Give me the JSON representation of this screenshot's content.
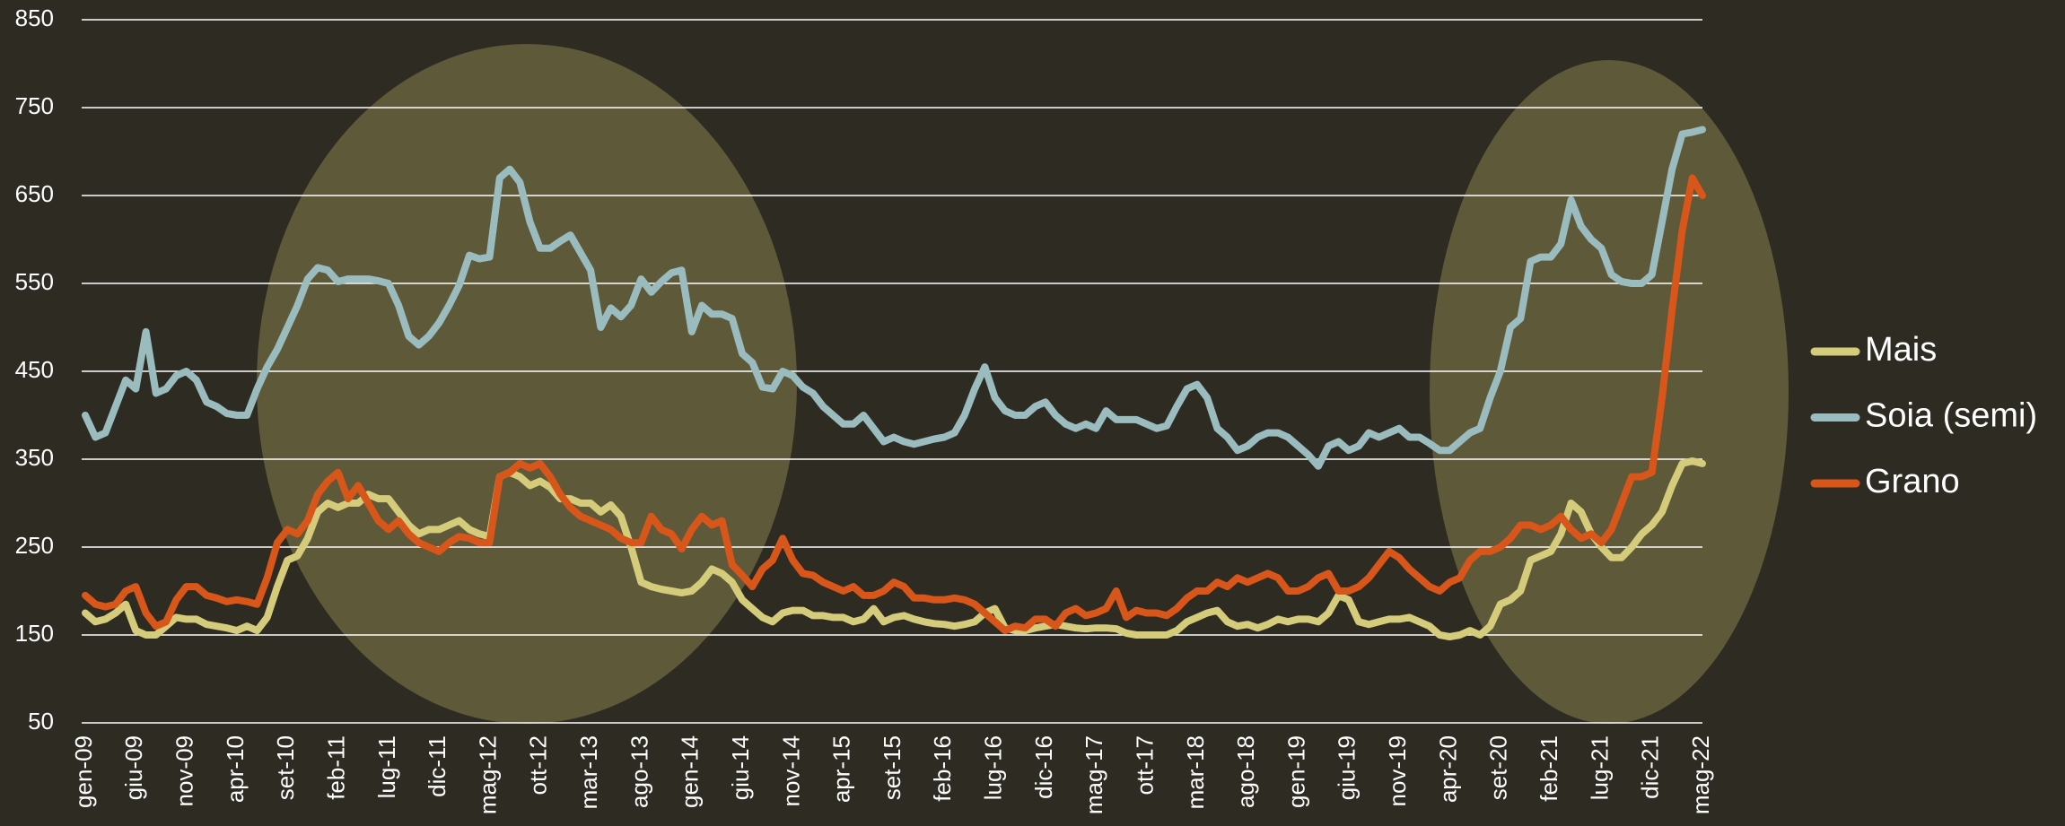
{
  "chart_data": {
    "type": "line",
    "categories": [
      "gen-09",
      null,
      null,
      null,
      null,
      "giu-09",
      null,
      null,
      null,
      null,
      "nov-09",
      null,
      null,
      null,
      null,
      "apr-10",
      null,
      null,
      null,
      null,
      "set-10",
      null,
      null,
      null,
      null,
      "feb-11",
      null,
      null,
      null,
      null,
      "lug-11",
      null,
      null,
      null,
      null,
      "dic-11",
      null,
      null,
      null,
      null,
      "mag-12",
      null,
      null,
      null,
      null,
      "ott-12",
      null,
      null,
      null,
      null,
      "mar-13",
      null,
      null,
      null,
      null,
      "ago-13",
      null,
      null,
      null,
      null,
      "gen-14",
      null,
      null,
      null,
      null,
      "giu-14",
      null,
      null,
      null,
      null,
      "nov-14",
      null,
      null,
      null,
      null,
      "apr-15",
      null,
      null,
      null,
      null,
      "set-15",
      null,
      null,
      null,
      null,
      "feb-16",
      null,
      null,
      null,
      null,
      "lug-16",
      null,
      null,
      null,
      null,
      "dic-16",
      null,
      null,
      null,
      null,
      "mag-17",
      null,
      null,
      null,
      null,
      "ott-17",
      null,
      null,
      null,
      null,
      "mar-18",
      null,
      null,
      null,
      null,
      "ago-18",
      null,
      null,
      null,
      null,
      "gen-19",
      null,
      null,
      null,
      null,
      "giu-19",
      null,
      null,
      null,
      null,
      "nov-19",
      null,
      null,
      null,
      null,
      "apr-20",
      null,
      null,
      null,
      null,
      "set-20",
      null,
      null,
      null,
      null,
      "feb-21",
      null,
      null,
      null,
      null,
      "lug-21",
      null,
      null,
      null,
      null,
      "dic-21",
      null,
      null,
      null,
      null,
      "mag-22"
    ],
    "series": [
      {
        "name": "Mais",
        "color": "#d4cc7a",
        "values": [
          175,
          165,
          168,
          175,
          185,
          155,
          150,
          150,
          160,
          170,
          168,
          168,
          162,
          160,
          158,
          155,
          160,
          155,
          170,
          205,
          235,
          240,
          260,
          290,
          300,
          295,
          300,
          300,
          310,
          305,
          305,
          290,
          275,
          265,
          270,
          270,
          275,
          280,
          270,
          265,
          262,
          330,
          335,
          330,
          320,
          325,
          318,
          305,
          305,
          300,
          300,
          290,
          298,
          285,
          250,
          210,
          205,
          202,
          200,
          198,
          200,
          210,
          225,
          220,
          210,
          190,
          180,
          170,
          165,
          175,
          178,
          178,
          172,
          172,
          170,
          170,
          165,
          168,
          180,
          165,
          170,
          172,
          168,
          165,
          163,
          162,
          160,
          162,
          165,
          175,
          180,
          158,
          155,
          155,
          158,
          160,
          162,
          160,
          158,
          157,
          158,
          158,
          157,
          152,
          150,
          150,
          150,
          150,
          155,
          165,
          170,
          175,
          178,
          165,
          160,
          162,
          158,
          162,
          168,
          165,
          168,
          168,
          165,
          175,
          195,
          190,
          165,
          162,
          165,
          168,
          168,
          170,
          165,
          160,
          150,
          148,
          150,
          155,
          150,
          160,
          185,
          190,
          200,
          235,
          240,
          245,
          265,
          300,
          290,
          265,
          250,
          238,
          238,
          250,
          265,
          275,
          290,
          320,
          345,
          348,
          345
        ]
      },
      {
        "name": "Soia (semi)",
        "color": "#9bbcbf",
        "values": [
          400,
          375,
          380,
          410,
          440,
          430,
          495,
          425,
          430,
          445,
          450,
          440,
          415,
          410,
          402,
          400,
          400,
          430,
          455,
          475,
          500,
          525,
          555,
          568,
          565,
          552,
          555,
          555,
          555,
          553,
          550,
          525,
          490,
          480,
          490,
          505,
          525,
          548,
          582,
          578,
          580,
          670,
          680,
          665,
          620,
          590,
          590,
          598,
          605,
          585,
          565,
          500,
          522,
          512,
          525,
          555,
          540,
          552,
          562,
          565,
          495,
          525,
          515,
          515,
          510,
          470,
          460,
          432,
          430,
          450,
          445,
          432,
          425,
          410,
          400,
          390,
          390,
          400,
          385,
          370,
          375,
          370,
          367,
          370,
          373,
          375,
          380,
          400,
          430,
          455,
          420,
          405,
          400,
          400,
          410,
          415,
          400,
          390,
          385,
          390,
          385,
          405,
          395,
          395,
          395,
          390,
          385,
          388,
          410,
          430,
          435,
          420,
          385,
          375,
          360,
          365,
          375,
          380,
          380,
          375,
          365,
          355,
          342,
          365,
          370,
          360,
          365,
          380,
          375,
          380,
          385,
          375,
          375,
          368,
          360,
          360,
          370,
          380,
          385,
          420,
          450,
          500,
          510,
          575,
          580,
          580,
          595,
          645,
          615,
          600,
          590,
          560,
          552,
          550,
          550,
          560,
          620,
          680,
          720,
          722,
          725
        ]
      },
      {
        "name": "Grano",
        "color": "#d9561a",
        "values": [
          195,
          185,
          182,
          185,
          200,
          205,
          175,
          160,
          165,
          190,
          205,
          205,
          195,
          192,
          188,
          190,
          188,
          185,
          215,
          255,
          270,
          265,
          280,
          310,
          325,
          335,
          305,
          320,
          300,
          280,
          270,
          280,
          265,
          255,
          250,
          245,
          255,
          262,
          260,
          255,
          255,
          330,
          335,
          345,
          340,
          345,
          330,
          310,
          295,
          285,
          280,
          275,
          270,
          260,
          255,
          255,
          285,
          270,
          265,
          248,
          270,
          285,
          275,
          280,
          230,
          218,
          205,
          225,
          235,
          260,
          235,
          220,
          218,
          210,
          205,
          200,
          205,
          195,
          195,
          200,
          210,
          205,
          192,
          192,
          190,
          190,
          192,
          190,
          185,
          175,
          165,
          155,
          160,
          158,
          168,
          168,
          160,
          175,
          180,
          172,
          175,
          180,
          200,
          170,
          178,
          175,
          175,
          172,
          180,
          192,
          200,
          200,
          210,
          205,
          215,
          210,
          215,
          220,
          215,
          200,
          200,
          205,
          215,
          220,
          200,
          200,
          205,
          215,
          230,
          245,
          238,
          225,
          215,
          205,
          200,
          210,
          215,
          235,
          245,
          245,
          250,
          260,
          275,
          275,
          270,
          275,
          285,
          270,
          260,
          265,
          255,
          270,
          300,
          330,
          330,
          335,
          420,
          520,
          610,
          670,
          650
        ]
      }
    ],
    "ylim": [
      50,
      850
    ],
    "yticks": [
      50,
      150,
      250,
      350,
      450,
      550,
      650,
      750,
      850
    ],
    "grid": true,
    "legend": "right"
  }
}
